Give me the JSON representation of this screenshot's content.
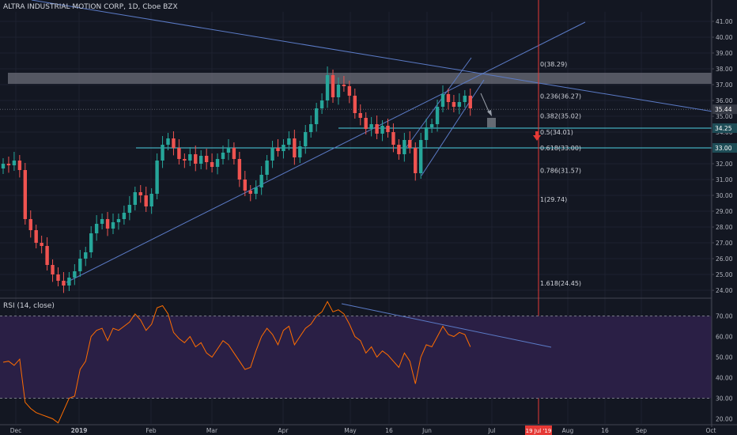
{
  "header": {
    "title": "ALTRA INDUSTRIAL MOTION CORP, 1D, Cboe BZX"
  },
  "rsi_header": {
    "title": "RSI (14, close)"
  },
  "colors": {
    "background": "#131722",
    "up": "#26a69a",
    "down": "#ef5350",
    "trend": "#5b7bc7",
    "fib": "#d1d4dc",
    "hline": "#4dd0e1",
    "rsi_line": "#ff6d00",
    "rsi_band": "#2a1f45",
    "event": "#e53935"
  },
  "chart_data": [
    {
      "type": "candlestick",
      "x_ticks": [
        "Dec",
        "2019",
        "Feb",
        "Mar",
        "Apr",
        "May",
        "16",
        "Jun",
        "Jul",
        "Aug",
        "16",
        "Sep",
        "Oct"
      ],
      "y_ticks": [
        "41.00",
        "40.00",
        "39.00",
        "38.00",
        "37.00",
        "36.00",
        "35.00",
        "34.00",
        "33.00",
        "32.00",
        "31.00",
        "30.00",
        "29.00",
        "28.00",
        "27.00",
        "26.00",
        "25.00",
        "24.00"
      ],
      "ylim": [
        23.6,
        41.6
      ],
      "price_labels": [
        {
          "text": "35.44",
          "value": 35.44,
          "style": "current"
        },
        {
          "text": "34.25",
          "value": 34.25,
          "style": "hline"
        },
        {
          "text": "33.00",
          "value": 33.0,
          "style": "hline"
        }
      ],
      "event_label": "19 Jul '19",
      "fib_levels": [
        {
          "label": "0(38.29)",
          "value": 38.29
        },
        {
          "label": "0.236(36.27)",
          "value": 36.27
        },
        {
          "label": "0.382(35.02)",
          "value": 35.02
        },
        {
          "label": "0.5(34.01)",
          "value": 34.01
        },
        {
          "label": "0.618(33.00)",
          "value": 33.0
        },
        {
          "label": "0.786(31.57)",
          "value": 31.57
        },
        {
          "label": "1(29.74)",
          "value": 29.74
        },
        {
          "label": "1.618(24.45)",
          "value": 24.45
        }
      ],
      "resistance_zone": [
        37.05,
        37.75
      ],
      "horizontal_lines": [
        34.25,
        33.0
      ],
      "closes": [
        32.0,
        31.9,
        32.2,
        31.6,
        28.5,
        27.8,
        27.0,
        26.8,
        25.6,
        25.0,
        24.6,
        24.3,
        24.8,
        25.2,
        26.0,
        26.4,
        27.6,
        28.2,
        28.5,
        27.9,
        28.3,
        28.5,
        28.9,
        29.4,
        30.2,
        30.0,
        29.3,
        30.1,
        32.2,
        33.2,
        33.6,
        33.0,
        32.3,
        32.2,
        32.6,
        32.0,
        32.5,
        32.1,
        31.8,
        32.3,
        32.7,
        33.0,
        32.3,
        31.0,
        30.3,
        30.1,
        30.5,
        31.3,
        32.2,
        33.0,
        32.8,
        33.2,
        33.6,
        32.4,
        33.1,
        34.0,
        34.5,
        35.5,
        36.0,
        37.6,
        36.2,
        37.0,
        36.9,
        36.3,
        35.2,
        34.9,
        34.2,
        34.5,
        33.9,
        34.4,
        34.0,
        33.2,
        32.6,
        33.5,
        33.0,
        31.4,
        33.5,
        34.3,
        34.5,
        35.6,
        36.4,
        35.9,
        35.6,
        35.9,
        36.3,
        35.5
      ]
    },
    {
      "type": "line",
      "name": "RSI (14, close)",
      "y_ticks": [
        "70.00",
        "60.00",
        "50.00",
        "40.00",
        "30.00",
        "20.00"
      ],
      "ylim": [
        17.5,
        77.5
      ],
      "band": [
        30,
        70
      ],
      "values": [
        47.5,
        48,
        46,
        49,
        28,
        25,
        23,
        22,
        21,
        20,
        18,
        24,
        30,
        31,
        44,
        48,
        60,
        63,
        64,
        58,
        64,
        63,
        65,
        67,
        71,
        68,
        63,
        66,
        74,
        75,
        71,
        62,
        59,
        57,
        60,
        55,
        57,
        52,
        50,
        54,
        58,
        56,
        52,
        48,
        44,
        45,
        53,
        60,
        64,
        61,
        56,
        63,
        65,
        56,
        60,
        64,
        66,
        70,
        72,
        77,
        72,
        73,
        71,
        66,
        60,
        58,
        52,
        55,
        50,
        53,
        51,
        48,
        45,
        52,
        48,
        37,
        50,
        56,
        55,
        60,
        65,
        61,
        60,
        62,
        61,
        55
      ]
    }
  ]
}
